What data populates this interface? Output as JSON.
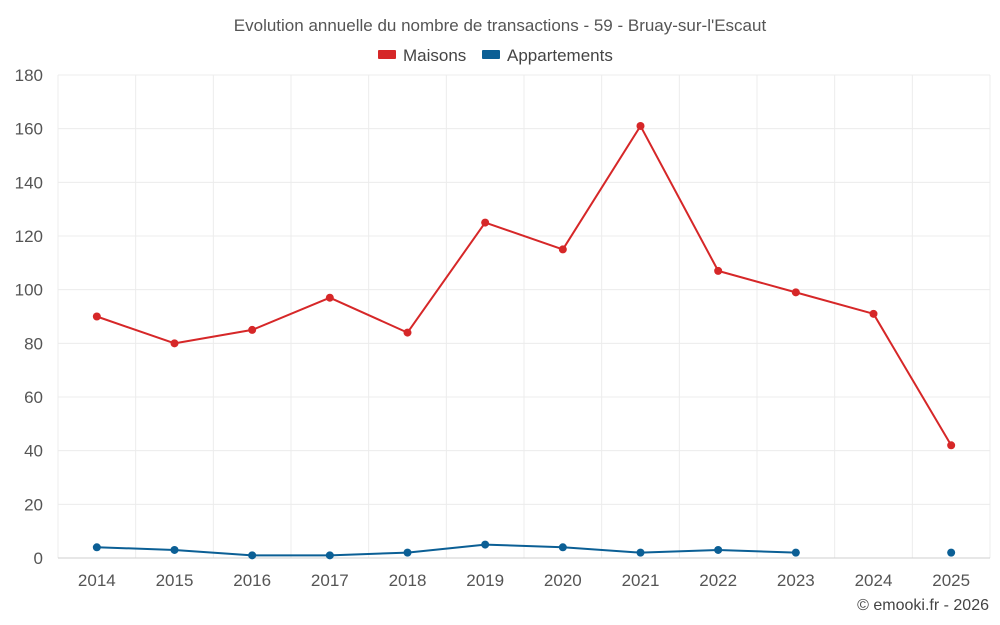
{
  "chart_data": {
    "type": "line",
    "title": "Evolution annuelle du nombre de transactions - 59 - Bruay-sur-l'Escaut",
    "xlabel": "",
    "ylabel": "",
    "categories": [
      "2014",
      "2015",
      "2016",
      "2017",
      "2018",
      "2019",
      "2020",
      "2021",
      "2022",
      "2023",
      "2024",
      "2025"
    ],
    "ylim": [
      0,
      180
    ],
    "yticks": [
      0,
      20,
      40,
      60,
      80,
      100,
      120,
      140,
      160,
      180
    ],
    "grid": true,
    "legend_position": "top-center",
    "series": [
      {
        "name": "Maisons",
        "color": "#d62728",
        "values": [
          90,
          80,
          85,
          97,
          84,
          125,
          115,
          161,
          107,
          99,
          91,
          42
        ]
      },
      {
        "name": "Appartements",
        "color": "#0b5f95",
        "values": [
          4,
          3,
          1,
          1,
          2,
          5,
          4,
          2,
          3,
          2,
          null,
          2
        ]
      }
    ]
  },
  "credit": "© emooki.fr - 2026"
}
